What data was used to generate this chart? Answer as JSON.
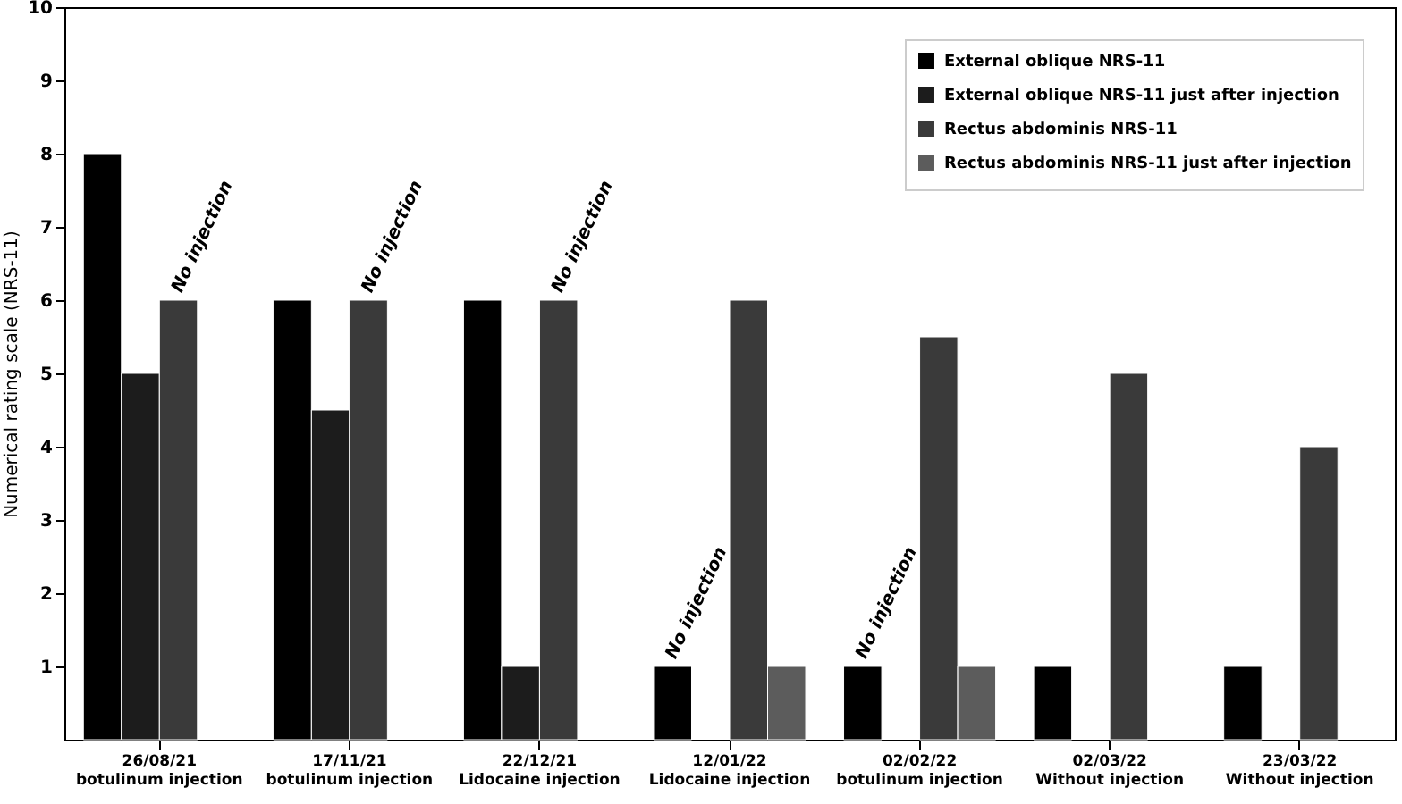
{
  "chart_data": {
    "type": "bar",
    "ylabel": "Numerical rating scale (NRS-11)",
    "categories": [
      "26/08/21\nbotulinum injection",
      "17/11/21\nbotulinum injection",
      "22/12/21\nLidocaine injection",
      "12/01/22\nLidocaine injection",
      "02/02/22\nbotulinum injection",
      "02/03/22\nWithout injection",
      "23/03/22\nWithout injection"
    ],
    "series": [
      {
        "name": "External oblique NRS-11",
        "color": "#000000",
        "values": [
          8,
          6,
          6,
          1,
          1,
          1,
          1
        ]
      },
      {
        "name": "External oblique NRS-11 just after injection",
        "color": "#1c1c1c",
        "values": [
          5,
          4.5,
          1,
          null,
          null,
          null,
          null
        ]
      },
      {
        "name": "Rectus abdominis NRS-11",
        "color": "#3a3a3a",
        "values": [
          6,
          6,
          6,
          6,
          5.5,
          5,
          4
        ]
      },
      {
        "name": "Rectus abdominis NRS-11 just after injection",
        "color": "#5c5c5c",
        "values": [
          null,
          null,
          null,
          1,
          1,
          null,
          null
        ]
      }
    ],
    "annotations": [
      {
        "text": "No injection",
        "x": "26/08/21\nbotulinum injection",
        "y": 6
      },
      {
        "text": "No injection",
        "x": "17/11/21\nbotulinum injection",
        "y": 6
      },
      {
        "text": "No injection",
        "x": "22/12/21\nLidocaine injection",
        "y": 6
      },
      {
        "text": "No injection",
        "x": "12/01/22\nLidocaine injection",
        "y": 1
      },
      {
        "text": "No injection",
        "x": "02/02/22\nbotulinum injection",
        "y": 1
      }
    ],
    "ylim": [
      0,
      10
    ],
    "yticks": [
      1,
      2,
      3,
      4,
      5,
      6,
      7,
      8,
      9,
      10
    ],
    "grid": false,
    "legend": "top right"
  }
}
